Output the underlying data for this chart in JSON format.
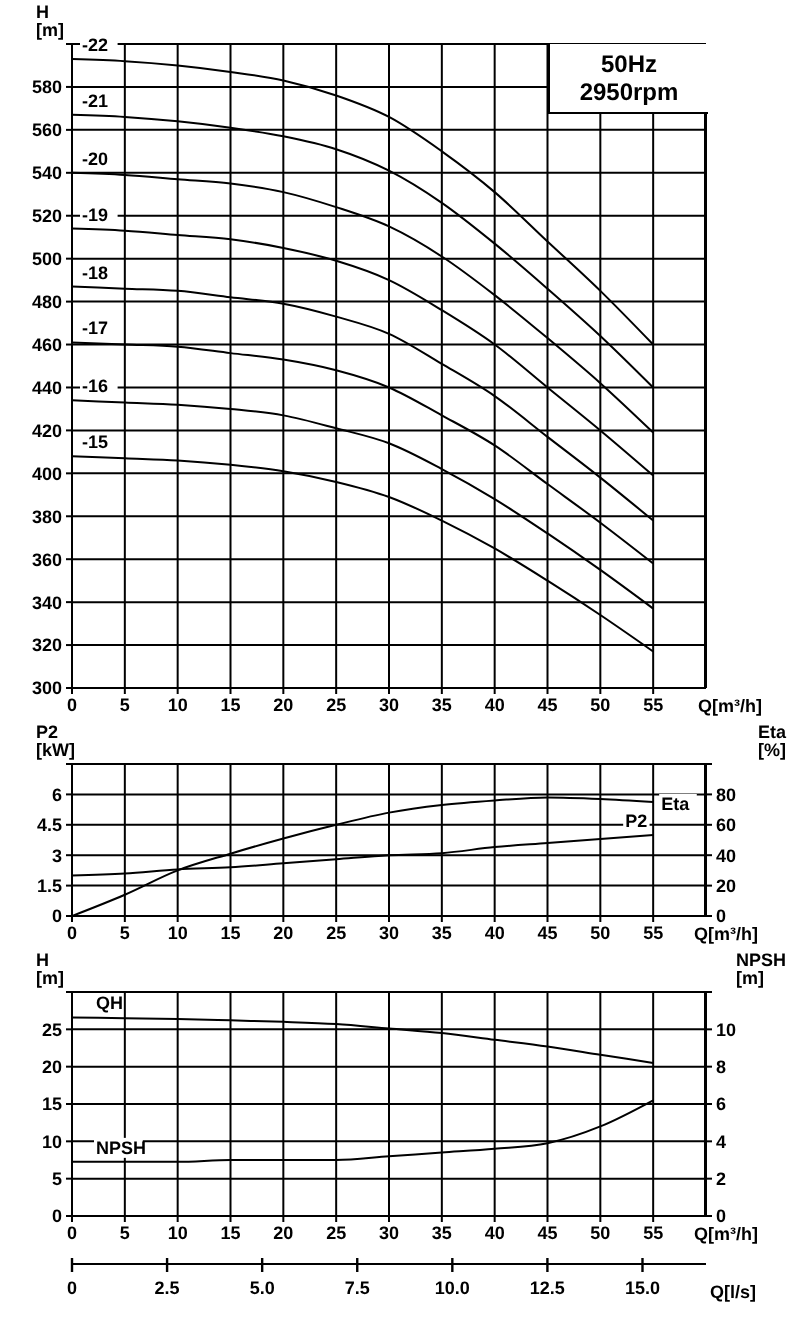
{
  "chart_data": [
    {
      "type": "line",
      "ylabel": "H [m]",
      "xlabel": "Q[m³/h]",
      "annotations": [
        "50Hz",
        "2950rpm"
      ],
      "grid": true,
      "legend": false,
      "marker": "none",
      "line_style": "solid",
      "x": [
        0,
        5,
        10,
        15,
        20,
        25,
        30,
        35,
        40,
        45,
        50,
        55
      ],
      "xlim": [
        0,
        60
      ],
      "xticks": [
        0,
        5,
        10,
        15,
        20,
        25,
        30,
        35,
        40,
        45,
        50,
        55
      ],
      "ylim": [
        300,
        600
      ],
      "yticks": [
        300,
        320,
        340,
        360,
        380,
        400,
        420,
        440,
        460,
        480,
        500,
        520,
        540,
        560,
        580,
        {
          "value": 600,
          "label": null
        }
      ],
      "series": [
        {
          "name": "-22",
          "color": "#000000",
          "values": [
            593,
            592,
            590,
            587,
            583,
            576,
            566,
            550,
            531,
            508,
            485,
            460
          ]
        },
        {
          "name": "-21",
          "color": "#000000",
          "values": [
            567,
            566,
            564,
            561,
            557,
            551,
            541,
            526,
            507,
            486,
            464,
            440
          ]
        },
        {
          "name": "-20",
          "color": "#000000",
          "values": [
            540,
            539,
            537,
            535,
            531,
            524,
            515,
            501,
            483,
            463,
            442,
            419
          ]
        },
        {
          "name": "-19",
          "color": "#000000",
          "values": [
            514,
            513,
            511,
            509,
            505,
            499,
            490,
            476,
            460,
            440,
            420,
            399
          ]
        },
        {
          "name": "-18",
          "color": "#000000",
          "values": [
            487,
            486,
            485,
            482,
            479,
            473,
            465,
            451,
            436,
            417,
            398,
            378
          ]
        },
        {
          "name": "-17",
          "color": "#000000",
          "values": [
            461,
            460,
            459,
            456,
            453,
            448,
            440,
            427,
            413,
            395,
            377,
            358
          ]
        },
        {
          "name": "-16",
          "color": "#000000",
          "values": [
            434,
            433,
            432,
            430,
            427,
            421,
            414,
            402,
            388,
            372,
            355,
            337
          ]
        },
        {
          "name": "-15",
          "color": "#000000",
          "values": [
            408,
            407,
            406,
            404,
            401,
            396,
            389,
            378,
            365,
            350,
            334,
            317
          ]
        }
      ]
    },
    {
      "type": "line",
      "ylabel": "P2 [kW]",
      "y2label": "Eta [%]",
      "xlabel": "Q[m³/h]",
      "grid": true,
      "legend": false,
      "marker": "none",
      "line_style": "solid",
      "x": [
        0,
        5,
        10,
        15,
        20,
        25,
        30,
        35,
        40,
        45,
        50,
        55
      ],
      "xlim": [
        0,
        60
      ],
      "xticks": [
        0,
        5,
        10,
        15,
        20,
        25,
        30,
        35,
        40,
        45,
        50,
        55
      ],
      "ylim": [
        0,
        7.5
      ],
      "yticks": [
        0,
        1.5,
        3,
        4.5,
        6,
        {
          "value": 7.5,
          "label": null
        }
      ],
      "y2lim": [
        0,
        100
      ],
      "y2ticks": [
        0,
        20,
        40,
        60,
        80,
        {
          "value": 100,
          "label": null
        }
      ],
      "series": [
        {
          "name": "Eta",
          "color": "#000000",
          "axis": "y2",
          "values": [
            0,
            14,
            30,
            41,
            51,
            60,
            68,
            73,
            76,
            78,
            77,
            75
          ]
        },
        {
          "name": "P2",
          "color": "#000000",
          "values": [
            2.0,
            2.1,
            2.3,
            2.4,
            2.6,
            2.8,
            3.0,
            3.1,
            3.4,
            3.6,
            3.8,
            4.0
          ]
        }
      ]
    },
    {
      "type": "line",
      "ylabel": "H [m]",
      "y2label": "NPSH [m]",
      "xlabel": "Q[m³/h]",
      "x2label": "Q[l/s]",
      "grid": true,
      "legend": false,
      "marker": "none",
      "line_style": "solid",
      "x": [
        0,
        5,
        10,
        15,
        20,
        25,
        30,
        35,
        40,
        45,
        50,
        55
      ],
      "xlim": [
        0,
        60
      ],
      "xticks": [
        0,
        5,
        10,
        15,
        20,
        25,
        30,
        35,
        40,
        45,
        50,
        55
      ],
      "x2lim": [
        0,
        16.67
      ],
      "x2ticks": [
        0,
        2.5,
        {
          "value": 5,
          "label": "5.0"
        },
        7.5,
        {
          "value": 10,
          "label": "10.0"
        },
        12.5,
        {
          "value": 15,
          "label": "15.0"
        }
      ],
      "ylim": [
        0,
        30
      ],
      "yticks": [
        0,
        5,
        10,
        15,
        20,
        25,
        {
          "value": 30,
          "label": null
        }
      ],
      "y2lim": [
        0,
        12
      ],
      "y2ticks": [
        0,
        2,
        4,
        6,
        8,
        10,
        {
          "value": 12,
          "label": null
        }
      ],
      "series": [
        {
          "name": "QH",
          "color": "#000000",
          "values": [
            26.6,
            26.5,
            26.4,
            26.2,
            26,
            25.7,
            25.1,
            24.5,
            23.6,
            22.7,
            21.6,
            20.5
          ]
        },
        {
          "name": "NPSH",
          "color": "#000000",
          "axis": "y2",
          "values": [
            2.9,
            2.9,
            2.9,
            3.0,
            3.0,
            3.0,
            3.2,
            3.4,
            3.6,
            3.9,
            4.8,
            6.2
          ]
        }
      ]
    }
  ]
}
